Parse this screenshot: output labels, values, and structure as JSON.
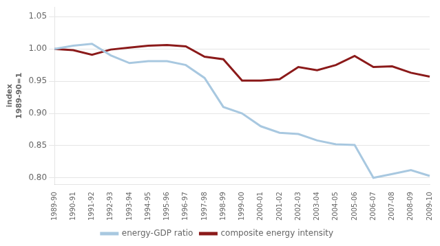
{
  "chart_data": {
    "type": "line",
    "categories": [
      "1989-90",
      "1990-91",
      "1991-92",
      "1992-93",
      "1993-94",
      "1994-95",
      "1995-96",
      "1996-97",
      "1997-98",
      "1998-99",
      "1999-00",
      "2000-01",
      "2001-02",
      "2002-03",
      "2003-04",
      "2004-05",
      "2005-06",
      "2006-07",
      "2007-08",
      "2008-09",
      "2009-10"
    ],
    "series": [
      {
        "name": "energy-GDP ratio",
        "color": "#a8c8e0",
        "values": [
          1.0,
          1.005,
          1.008,
          0.99,
          0.978,
          0.981,
          0.981,
          0.975,
          0.955,
          0.91,
          0.9,
          0.88,
          0.87,
          0.868,
          0.858,
          0.852,
          0.851,
          0.8,
          0.806,
          0.812,
          0.803
        ]
      },
      {
        "name": "composite energy intensity",
        "color": "#8b1a1a",
        "values": [
          1.0,
          0.998,
          0.991,
          0.999,
          1.002,
          1.005,
          1.006,
          1.004,
          0.988,
          0.984,
          0.951,
          0.951,
          0.953,
          0.972,
          0.967,
          0.975,
          0.989,
          0.972,
          0.973,
          0.963,
          0.957
        ]
      }
    ],
    "ylabel": [
      "index",
      "1989-90=1"
    ],
    "ylim": [
      0.79,
      1.065
    ],
    "yticks": [
      {
        "value": 0.8,
        "label": "0.80"
      },
      0.85,
      {
        "value": 0.9,
        "label": "0.90"
      },
      0.95,
      {
        "value": 1.0,
        "label": "1.00"
      },
      1.05
    ],
    "grid": "y",
    "legend": "bottom",
    "marker": "none"
  }
}
